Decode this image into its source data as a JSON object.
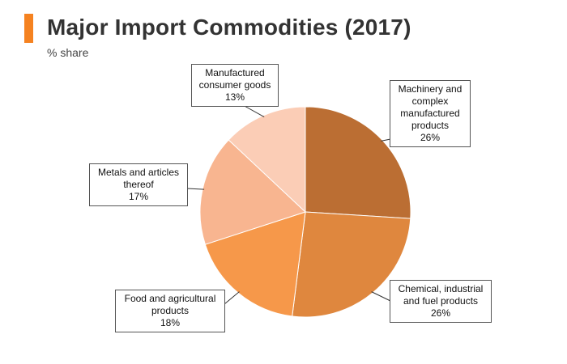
{
  "header": {
    "title": "Major Import Commodities (2017)",
    "subtitle": "% share",
    "accent_color": "#f58220"
  },
  "chart_data": {
    "type": "pie",
    "title": "Major Import Commodities (2017)",
    "subtitle": "% share",
    "start": "12 o'clock",
    "direction": "clockwise",
    "slices": [
      {
        "label": "Machinery and complex manufactured products",
        "value": 26,
        "value_label": "26%",
        "color": "#bb6e33"
      },
      {
        "label": "Chemical, industrial and fuel products",
        "value": 26,
        "value_label": "26%",
        "color": "#df873e"
      },
      {
        "label": "Food and agricultural products",
        "value": 18,
        "value_label": "18%",
        "color": "#f6984a"
      },
      {
        "label": "Metals and articles thereof",
        "value": 17,
        "value_label": "17%",
        "color": "#f8b590"
      },
      {
        "label": "Manufactured consumer goods",
        "value": 13,
        "value_label": "13%",
        "color": "#fbcdb6"
      }
    ]
  }
}
